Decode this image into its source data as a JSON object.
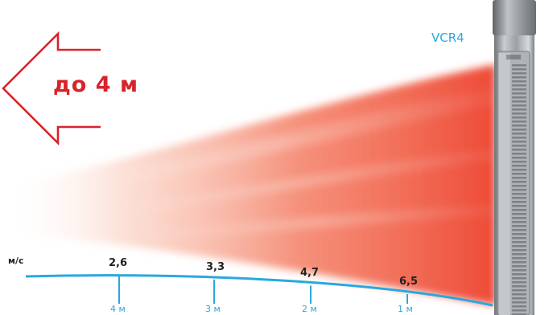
{
  "device": {
    "model": "VCR4"
  },
  "range": {
    "label": "до 4 м"
  },
  "axis": {
    "unit_label": "м/с",
    "points": [
      {
        "speed": "2,6",
        "distance": "4 м"
      },
      {
        "speed": "3,3",
        "distance": "3 м"
      },
      {
        "speed": "4,7",
        "distance": "2 м"
      },
      {
        "speed": "6,5",
        "distance": "1 м"
      }
    ]
  },
  "colors": {
    "arrow": "#d8232a",
    "axis": "#29a8e0",
    "airflow": "#f0543c"
  }
}
